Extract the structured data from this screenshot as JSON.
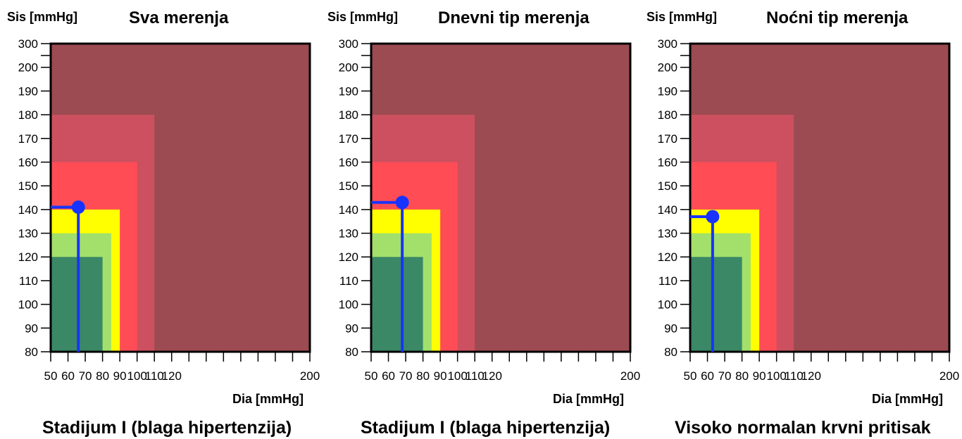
{
  "colors": {
    "zone_optimal": "#3a8866",
    "zone_normal": "#a2e06b",
    "zone_high_normal": "#ffff00",
    "zone_stage1": "#ff4c55",
    "zone_stage2": "#cc505f",
    "zone_stage3": "#9b4b51",
    "marker": "#1833ff",
    "axis": "#000000"
  },
  "chart_data": [
    {
      "type": "scatter",
      "title": "Sva merenja",
      "ylabel": "Sis [mmHg]",
      "xlabel": "Dia [mmHg]",
      "x_ticks": [
        50,
        60,
        70,
        80,
        90,
        100,
        110,
        120,
        130,
        140,
        150,
        160,
        170,
        180,
        190,
        200
      ],
      "x_tick_labels": [
        "50",
        "60",
        "70",
        "80",
        "90",
        "100",
        "110",
        "120",
        "",
        "",
        "",
        "",
        "",
        "",
        "",
        "200"
      ],
      "y_ticks": [
        80,
        90,
        100,
        110,
        120,
        130,
        140,
        150,
        160,
        170,
        180,
        190,
        200,
        300
      ],
      "y_tick_labels": [
        "80",
        "90",
        "100",
        "110",
        "120",
        "130",
        "140",
        "150",
        "160",
        "170",
        "180",
        "190",
        "200",
        "300"
      ],
      "zones": [
        {
          "dia_max": 200,
          "sis_max": 300,
          "color": "#9b4b51"
        },
        {
          "dia_max": 110,
          "sis_max": 180,
          "color": "#cc505f"
        },
        {
          "dia_max": 100,
          "sis_max": 160,
          "color": "#ff4c55"
        },
        {
          "dia_max": 90,
          "sis_max": 140,
          "color": "#ffff00"
        },
        {
          "dia_max": 85,
          "sis_max": 130,
          "color": "#a2e06b"
        },
        {
          "dia_max": 80,
          "sis_max": 120,
          "color": "#3a8866"
        }
      ],
      "point": {
        "dia": 66,
        "sis": 141
      },
      "classification": "Stadijum I (blaga hipertenzija)"
    },
    {
      "type": "scatter",
      "title": "Dnevni tip merenja",
      "ylabel": "Sis [mmHg]",
      "xlabel": "Dia [mmHg]",
      "x_ticks": [
        50,
        60,
        70,
        80,
        90,
        100,
        110,
        120,
        130,
        140,
        150,
        160,
        170,
        180,
        190,
        200
      ],
      "x_tick_labels": [
        "50",
        "60",
        "70",
        "80",
        "90",
        "100",
        "110",
        "120",
        "",
        "",
        "",
        "",
        "",
        "",
        "",
        "200"
      ],
      "y_ticks": [
        80,
        90,
        100,
        110,
        120,
        130,
        140,
        150,
        160,
        170,
        180,
        190,
        200,
        300
      ],
      "y_tick_labels": [
        "80",
        "90",
        "100",
        "110",
        "120",
        "130",
        "140",
        "150",
        "160",
        "170",
        "180",
        "190",
        "200",
        "300"
      ],
      "zones": [
        {
          "dia_max": 200,
          "sis_max": 300,
          "color": "#9b4b51"
        },
        {
          "dia_max": 110,
          "sis_max": 180,
          "color": "#cc505f"
        },
        {
          "dia_max": 100,
          "sis_max": 160,
          "color": "#ff4c55"
        },
        {
          "dia_max": 90,
          "sis_max": 140,
          "color": "#ffff00"
        },
        {
          "dia_max": 85,
          "sis_max": 130,
          "color": "#a2e06b"
        },
        {
          "dia_max": 80,
          "sis_max": 120,
          "color": "#3a8866"
        }
      ],
      "point": {
        "dia": 68,
        "sis": 143
      },
      "classification": "Stadijum I (blaga hipertenzija)"
    },
    {
      "type": "scatter",
      "title": "Noćni tip merenja",
      "ylabel": "Sis [mmHg]",
      "xlabel": "Dia [mmHg]",
      "x_ticks": [
        50,
        60,
        70,
        80,
        90,
        100,
        110,
        120,
        130,
        140,
        150,
        160,
        170,
        180,
        190,
        200
      ],
      "x_tick_labels": [
        "50",
        "60",
        "70",
        "80",
        "90",
        "100",
        "110",
        "120",
        "",
        "",
        "",
        "",
        "",
        "",
        "",
        "200"
      ],
      "y_ticks": [
        80,
        90,
        100,
        110,
        120,
        130,
        140,
        150,
        160,
        170,
        180,
        190,
        200,
        300
      ],
      "y_tick_labels": [
        "80",
        "90",
        "100",
        "110",
        "120",
        "130",
        "140",
        "150",
        "160",
        "170",
        "180",
        "190",
        "200",
        "300"
      ],
      "zones": [
        {
          "dia_max": 200,
          "sis_max": 300,
          "color": "#9b4b51"
        },
        {
          "dia_max": 110,
          "sis_max": 180,
          "color": "#cc505f"
        },
        {
          "dia_max": 100,
          "sis_max": 160,
          "color": "#ff4c55"
        },
        {
          "dia_max": 90,
          "sis_max": 140,
          "color": "#ffff00"
        },
        {
          "dia_max": 85,
          "sis_max": 130,
          "color": "#a2e06b"
        },
        {
          "dia_max": 80,
          "sis_max": 120,
          "color": "#3a8866"
        }
      ],
      "point": {
        "dia": 63,
        "sis": 137
      },
      "classification": "Visoko normalan krvni pritisak"
    }
  ]
}
